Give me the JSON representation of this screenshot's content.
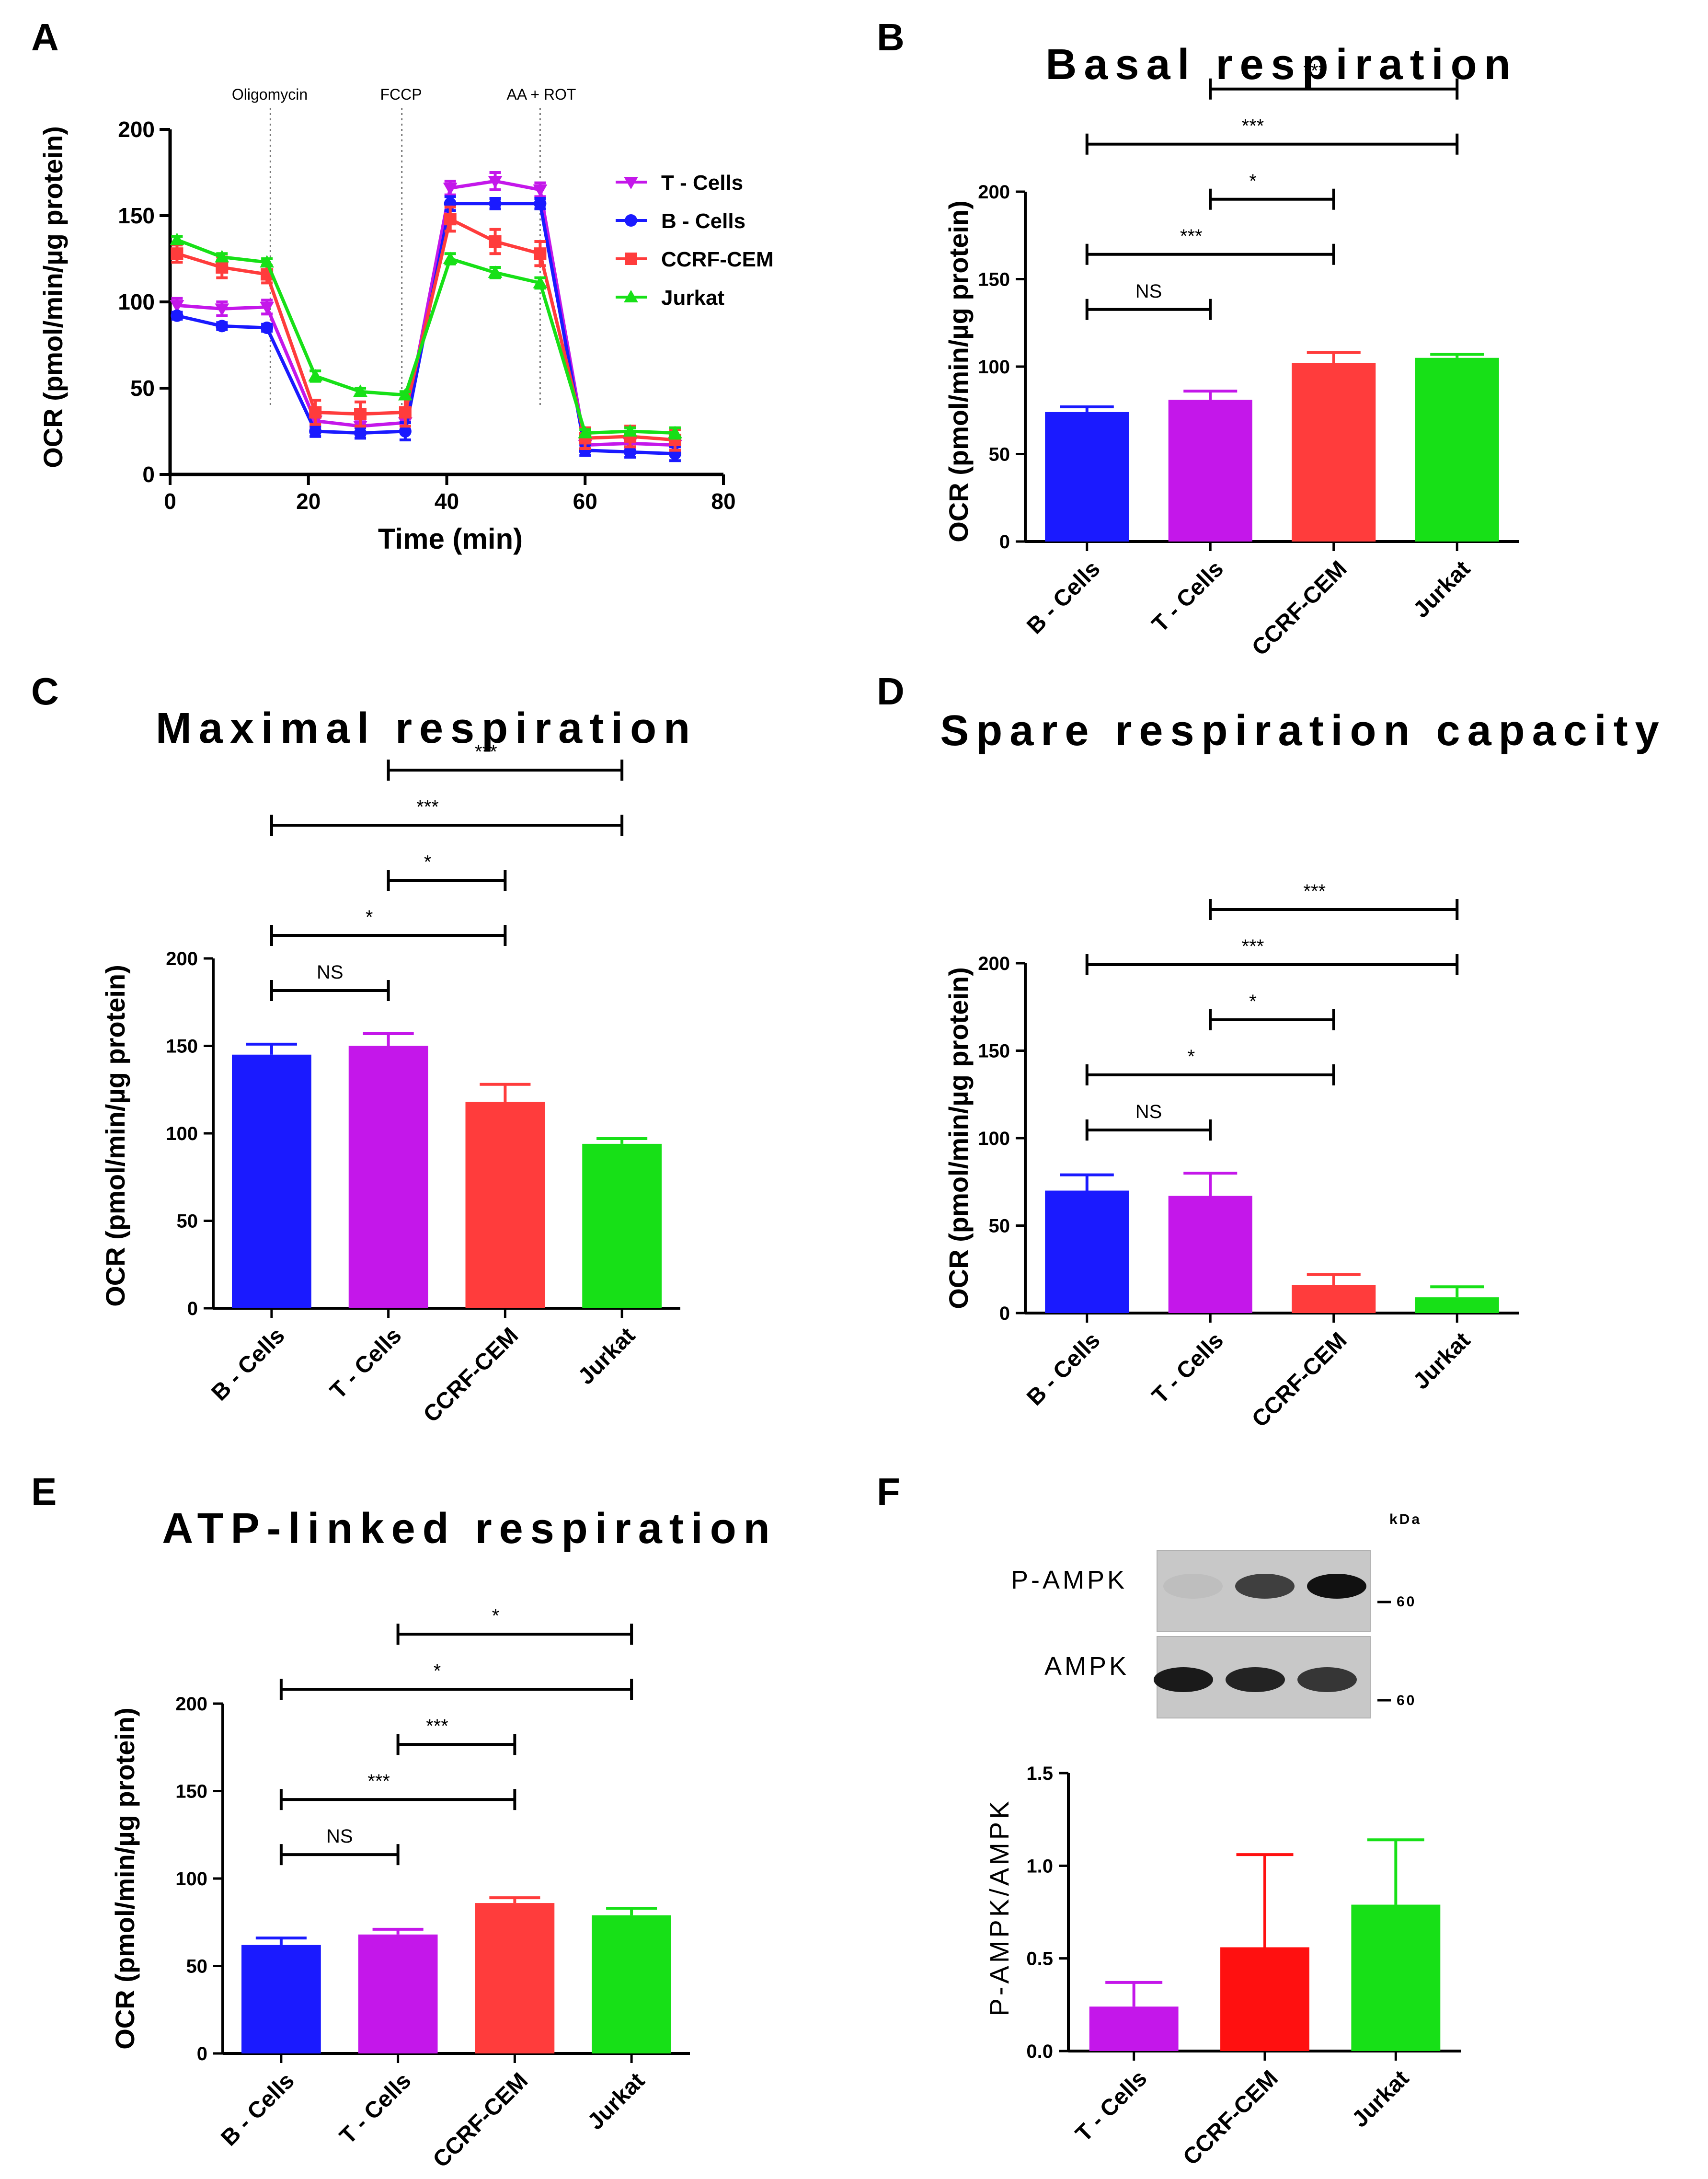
{
  "figure": {
    "background": "#ffffff",
    "series_colors": {
      "B - Cells": "#1a1aff",
      "T - Cells": "#c417ea",
      "CCRF-CEM": "#ff3c3c",
      "Jurkat": "#17e017",
      "F_CCRF-CEM": "#ff1010"
    }
  },
  "chart_data": [
    {
      "panel": "A",
      "type": "line",
      "title": "",
      "xlabel": "Time (min)",
      "ylabel": "OCR (pmol/min/µg protein)",
      "xlim": [
        0,
        80
      ],
      "ylim": [
        0,
        200
      ],
      "xticks": [
        0,
        20,
        40,
        60,
        80
      ],
      "yticks": [
        0,
        50,
        100,
        150,
        200
      ],
      "treatments": [
        {
          "label": "Oligomycin",
          "x": 14.5
        },
        {
          "label": "FCCP",
          "x": 33.5
        },
        {
          "label": "AA + ROT",
          "x": 53.5
        }
      ],
      "x": [
        1,
        7.5,
        14,
        21,
        27.5,
        34,
        40.5,
        47,
        53.5,
        60,
        66.5,
        73
      ],
      "legend": "right",
      "series": [
        {
          "name": "T - Cells",
          "marker": "triangle-down",
          "values": [
            98,
            96,
            97,
            31,
            28,
            30,
            166,
            170,
            165,
            17,
            18,
            17
          ],
          "errors": [
            4,
            4,
            4,
            4,
            4,
            4,
            4,
            5,
            4,
            3,
            3,
            3
          ]
        },
        {
          "name": "B - Cells",
          "marker": "circle",
          "values": [
            92,
            86,
            85,
            25,
            24,
            25,
            157,
            157,
            157,
            14,
            13,
            12
          ],
          "errors": [
            2,
            2,
            2,
            3,
            3,
            5,
            4,
            3,
            3,
            3,
            3,
            4
          ]
        },
        {
          "name": "CCRF-CEM",
          "marker": "square",
          "values": [
            128,
            120,
            116,
            36,
            35,
            36,
            148,
            135,
            128,
            21,
            22,
            20
          ],
          "errors": [
            5,
            6,
            5,
            7,
            7,
            8,
            7,
            7,
            7,
            6,
            6,
            6
          ]
        },
        {
          "name": "Jurkat",
          "marker": "triangle-up",
          "values": [
            136,
            126,
            123,
            57,
            48,
            46,
            125,
            117,
            111,
            24,
            25,
            24
          ],
          "errors": [
            2,
            2,
            2,
            3,
            2,
            2,
            3,
            3,
            3,
            2,
            2,
            3
          ]
        }
      ]
    },
    {
      "panel": "B",
      "type": "bar",
      "title": "Basal respiration",
      "ylabel": "OCR (pmol/min/µg protein)",
      "ylim": [
        0,
        200
      ],
      "yticks": [
        0,
        50,
        100,
        150,
        200
      ],
      "categories": [
        "B - Cells",
        "T - Cells",
        "CCRF-CEM",
        "Jurkat"
      ],
      "values": [
        74,
        81,
        102,
        105
      ],
      "errors": [
        3,
        5,
        6,
        2
      ],
      "significance": [
        {
          "from": 0,
          "to": 1,
          "label": "NS"
        },
        {
          "from": 0,
          "to": 2,
          "label": "***"
        },
        {
          "from": 1,
          "to": 2,
          "label": "*"
        },
        {
          "from": 0,
          "to": 3,
          "label": "***"
        },
        {
          "from": 1,
          "to": 3,
          "label": "***"
        }
      ]
    },
    {
      "panel": "C",
      "type": "bar",
      "title": "Maximal respiration",
      "ylabel": "OCR (pmol/min/µg protein)",
      "ylim": [
        0,
        200
      ],
      "yticks": [
        0,
        50,
        100,
        150,
        200
      ],
      "categories": [
        "B - Cells",
        "T - Cells",
        "CCRF-CEM",
        "Jurkat"
      ],
      "values": [
        145,
        150,
        118,
        94
      ],
      "errors": [
        6,
        7,
        10,
        3
      ],
      "significance": [
        {
          "from": 0,
          "to": 1,
          "label": "NS"
        },
        {
          "from": 0,
          "to": 2,
          "label": "*"
        },
        {
          "from": 1,
          "to": 2,
          "label": "*"
        },
        {
          "from": 0,
          "to": 3,
          "label": "***"
        },
        {
          "from": 1,
          "to": 3,
          "label": "***"
        }
      ]
    },
    {
      "panel": "D",
      "type": "bar",
      "title": "Spare respiration capacity",
      "ylabel": "OCR (pmol/min/µg protein)",
      "ylim": [
        0,
        200
      ],
      "yticks": [
        0,
        50,
        100,
        150,
        200
      ],
      "categories": [
        "B - Cells",
        "T - Cells",
        "CCRF-CEM",
        "Jurkat"
      ],
      "values": [
        70,
        67,
        16,
        9
      ],
      "errors": [
        9,
        13,
        6,
        6
      ],
      "significance": [
        {
          "from": 0,
          "to": 1,
          "label": "NS"
        },
        {
          "from": 0,
          "to": 2,
          "label": "*"
        },
        {
          "from": 1,
          "to": 2,
          "label": "*"
        },
        {
          "from": 0,
          "to": 3,
          "label": "***"
        },
        {
          "from": 1,
          "to": 3,
          "label": "***"
        }
      ]
    },
    {
      "panel": "E",
      "type": "bar",
      "title": "ATP-linked respiration",
      "ylabel": "OCR (pmol/min/µg protein)",
      "ylim": [
        0,
        200
      ],
      "yticks": [
        0,
        50,
        100,
        150,
        200
      ],
      "categories": [
        "B - Cells",
        "T - Cells",
        "CCRF-CEM",
        "Jurkat"
      ],
      "values": [
        62,
        68,
        86,
        79
      ],
      "errors": [
        4,
        3,
        3,
        4
      ],
      "significance": [
        {
          "from": 0,
          "to": 1,
          "label": "NS"
        },
        {
          "from": 0,
          "to": 2,
          "label": "***"
        },
        {
          "from": 1,
          "to": 2,
          "label": "***"
        },
        {
          "from": 0,
          "to": 3,
          "label": "*"
        },
        {
          "from": 1,
          "to": 3,
          "label": "*"
        }
      ]
    },
    {
      "panel": "F",
      "type": "bar",
      "title": "",
      "ylabel": "P-AMPK/AMPK",
      "ylim": [
        0,
        1.5
      ],
      "yticks": [
        0.0,
        0.5,
        1.0,
        1.5
      ],
      "ytick_labels": [
        "0.0",
        "0.5",
        "1.0",
        "1.5"
      ],
      "categories": [
        "T - Cells",
        "CCRF-CEM",
        "Jurkat"
      ],
      "values": [
        0.24,
        0.56,
        0.79
      ],
      "errors": [
        0.13,
        0.5,
        0.35
      ],
      "blot": {
        "kda_label": "kDa",
        "marker_label": "60",
        "rows": [
          {
            "label": "P-AMPK",
            "band_intensity": [
              0.05,
              0.75,
              1.0
            ]
          },
          {
            "label": "AMPK",
            "band_intensity": [
              0.95,
              0.9,
              0.8
            ]
          }
        ]
      }
    }
  ]
}
